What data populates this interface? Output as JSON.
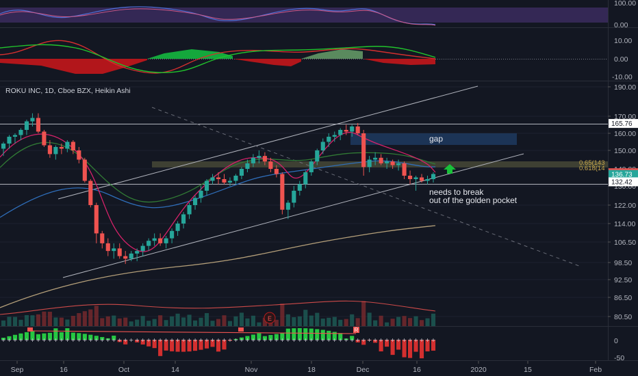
{
  "chart_data": {
    "type": "candlestick",
    "title": "ROKU INC, 1D, Cboe BZX, Heikin Ashi",
    "x_ticks": [
      "Sep",
      "16",
      "Oct",
      "14",
      "Nov",
      "18",
      "Dec",
      "16",
      "2020",
      "15",
      "Feb"
    ],
    "price_ticks": [
      "190.00",
      "170.00",
      "160.00",
      "150.00",
      "140.00",
      "130.00",
      "122.00",
      "114.00",
      "106.50",
      "98.50",
      "92.50",
      "86.50",
      "80.50"
    ],
    "rsi_ticks": [
      "100.00",
      "0.00"
    ],
    "macd_ticks": [
      "10.00",
      "0.00",
      "-10.00"
    ],
    "hist_ticks": [
      "0",
      "-50"
    ],
    "price_tags": [
      {
        "label": "165.76",
        "value": 165.76,
        "bg": "#ffffff",
        "fg": "#131722"
      },
      {
        "label": "137.73",
        "value": 137.73,
        "bg": "#ef5350",
        "fg": "#ffffff"
      },
      {
        "label": "136.73",
        "value": 136.73,
        "bg": "#26a69a",
        "fg": "#ffffff"
      },
      {
        "label": "132.42",
        "value": 132.42,
        "bg": "#ffffff",
        "fg": "#131722"
      }
    ],
    "fib_labels": [
      "0.65(143",
      "0.618(14"
    ],
    "annotations": {
      "gap": "gap",
      "note_line1": "needs to break",
      "note_line2": "out of the golden pocket",
      "earnings": "E",
      "split_marker": "R"
    },
    "candles": [
      [
        151,
        155,
        147,
        154
      ],
      [
        154,
        159,
        151,
        158
      ],
      [
        158,
        160,
        154,
        159
      ],
      [
        159,
        163,
        156,
        162
      ],
      [
        162,
        168,
        159,
        167
      ],
      [
        167,
        172,
        164,
        169
      ],
      [
        169,
        172,
        160,
        161
      ],
      [
        161,
        162,
        152,
        153
      ],
      [
        153,
        156,
        146,
        148
      ],
      [
        148,
        153,
        145,
        152
      ],
      [
        152,
        154,
        148,
        151
      ],
      [
        151,
        156,
        149,
        155
      ],
      [
        155,
        156,
        148,
        150
      ],
      [
        150,
        152,
        143,
        145
      ],
      [
        145,
        146,
        132,
        133
      ],
      [
        133,
        134,
        121,
        122
      ],
      [
        122,
        123,
        106,
        110
      ],
      [
        110,
        111,
        104,
        106
      ],
      [
        106,
        108,
        101,
        103
      ],
      [
        103,
        106,
        100,
        104
      ],
      [
        104,
        106,
        100,
        101
      ],
      [
        101,
        103,
        98,
        100
      ],
      [
        100,
        103,
        99,
        102
      ],
      [
        102,
        104,
        99,
        103
      ],
      [
        103,
        106,
        101,
        105
      ],
      [
        105,
        108,
        103,
        107
      ],
      [
        107,
        110,
        105,
        108
      ],
      [
        108,
        110,
        105,
        106
      ],
      [
        106,
        109,
        104,
        108
      ],
      [
        108,
        112,
        106,
        111
      ],
      [
        111,
        115,
        109,
        114
      ],
      [
        114,
        119,
        112,
        118
      ],
      [
        118,
        123,
        116,
        122
      ],
      [
        122,
        126,
        120,
        125
      ],
      [
        125,
        130,
        123,
        128
      ],
      [
        128,
        134,
        126,
        133
      ],
      [
        133,
        137,
        131,
        135
      ],
      [
        135,
        138,
        131,
        134
      ],
      [
        134,
        137,
        131,
        132
      ],
      [
        132,
        135,
        130,
        133
      ],
      [
        133,
        137,
        131,
        136
      ],
      [
        136,
        141,
        134,
        140
      ],
      [
        140,
        145,
        138,
        143
      ],
      [
        143,
        148,
        141,
        146
      ],
      [
        146,
        150,
        143,
        147
      ],
      [
        147,
        149,
        142,
        144
      ],
      [
        144,
        146,
        138,
        140
      ],
      [
        140,
        142,
        135,
        137
      ],
      [
        137,
        138,
        118,
        120
      ],
      [
        120,
        124,
        116,
        123
      ],
      [
        123,
        130,
        121,
        128
      ],
      [
        128,
        133,
        126,
        131
      ],
      [
        131,
        139,
        129,
        138
      ],
      [
        138,
        145,
        136,
        144
      ],
      [
        144,
        151,
        142,
        150
      ],
      [
        150,
        157,
        148,
        155
      ],
      [
        155,
        160,
        152,
        158
      ],
      [
        158,
        161,
        155,
        159
      ],
      [
        159,
        163,
        156,
        162
      ],
      [
        162,
        165,
        159,
        161
      ],
      [
        161,
        165,
        158,
        164
      ],
      [
        164,
        166,
        159,
        160
      ],
      [
        160,
        162,
        136,
        141
      ],
      [
        141,
        147,
        138,
        145
      ],
      [
        145,
        149,
        142,
        146
      ],
      [
        146,
        148,
        142,
        143
      ],
      [
        143,
        146,
        140,
        144
      ],
      [
        144,
        145,
        140,
        142
      ],
      [
        142,
        145,
        139,
        143
      ],
      [
        143,
        144,
        134,
        136
      ],
      [
        136,
        139,
        131,
        134
      ],
      [
        134,
        136,
        128,
        135
      ],
      [
        135,
        137,
        132,
        133
      ],
      [
        133,
        136,
        131,
        134
      ],
      [
        134,
        138,
        132,
        137
      ]
    ]
  }
}
